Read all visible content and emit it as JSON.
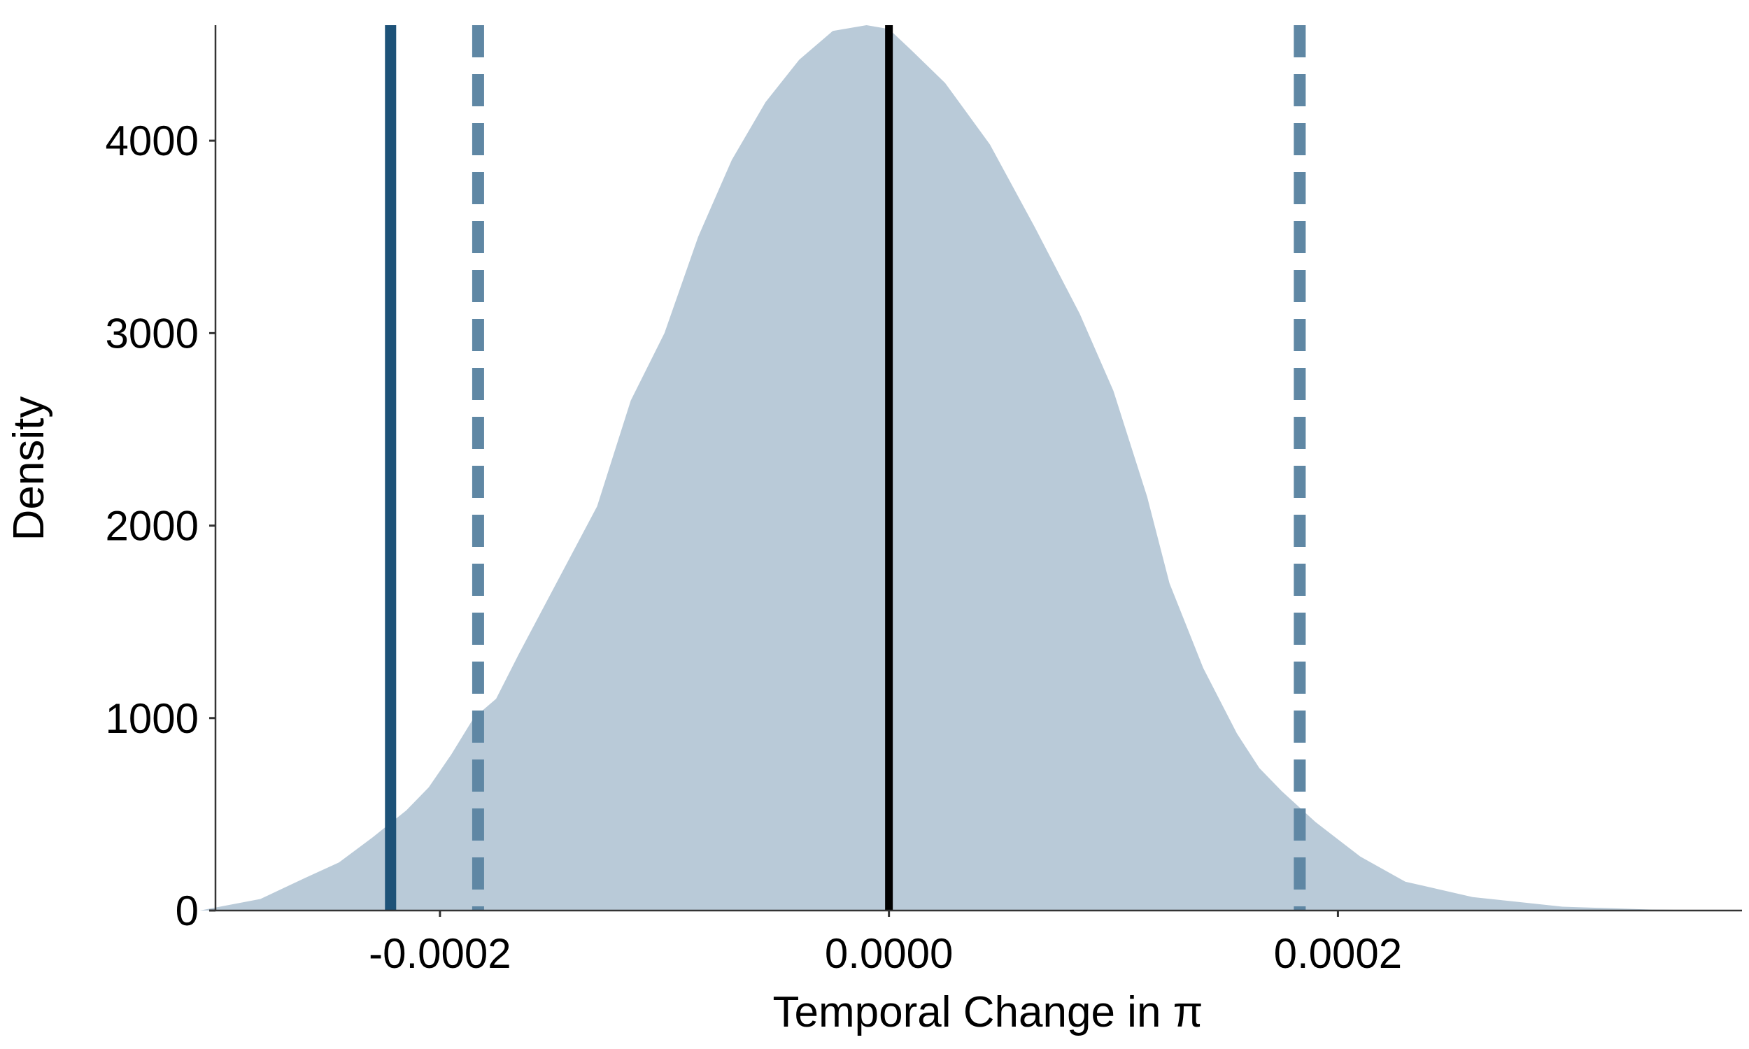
{
  "chart_data": {
    "type": "area",
    "title": "",
    "xlabel": "Temporal Change in π",
    "ylabel": "Density",
    "xlim": [
      -0.0003,
      0.00038
    ],
    "ylim": [
      0,
      4600
    ],
    "x_ticks": [
      {
        "value": -0.0002,
        "label": "-0.0002"
      },
      {
        "value": 0.0,
        "label": "0.0000"
      },
      {
        "value": 0.0002,
        "label": "0.0002"
      }
    ],
    "y_ticks": [
      {
        "value": 0,
        "label": "0"
      },
      {
        "value": 1000,
        "label": "1000"
      },
      {
        "value": 2000,
        "label": "2000"
      },
      {
        "value": 3000,
        "label": "3000"
      },
      {
        "value": 4000,
        "label": "4000"
      }
    ],
    "grid": false,
    "series": [
      {
        "kind": "density",
        "color": "#b9cad8",
        "x": [
          -0.000307,
          -0.00028,
          -0.00026,
          -0.000245,
          -0.00023,
          -0.000215,
          -0.000205,
          -0.000195,
          -0.000185,
          -0.000175,
          -0.000165,
          -0.00015,
          -0.00013,
          -0.000115,
          -0.0001,
          -8.5e-05,
          -7e-05,
          -5.5e-05,
          -4e-05,
          -2.5e-05,
          -1e-05,
          0.0,
          1e-05,
          2.5e-05,
          4.5e-05,
          6.5e-05,
          8.5e-05,
          0.0001,
          0.000115,
          0.000125,
          0.00014,
          0.000155,
          0.000165,
          0.000175,
          0.00019,
          0.00021,
          0.00023,
          0.00026,
          0.0003,
          0.00034,
          0.000373
        ],
        "y": [
          0,
          60,
          170,
          250,
          380,
          520,
          640,
          810,
          1000,
          1100,
          1330,
          1660,
          2100,
          2650,
          3000,
          3500,
          3900,
          4200,
          4420,
          4570,
          4600,
          4580,
          4470,
          4300,
          3980,
          3550,
          3100,
          2700,
          2150,
          1700,
          1260,
          920,
          740,
          620,
          460,
          280,
          150,
          70,
          20,
          5,
          0
        ]
      }
    ],
    "reference_lines": [
      {
        "x": -0.000222,
        "style": "solid",
        "color": "#1d5278"
      },
      {
        "x": -0.000183,
        "style": "dashed",
        "color": "#5f87a4"
      },
      {
        "x": 0.000183,
        "style": "dashed",
        "color": "#5f87a4"
      },
      {
        "x": 0.0,
        "style": "solid",
        "color": "#000000"
      }
    ]
  }
}
